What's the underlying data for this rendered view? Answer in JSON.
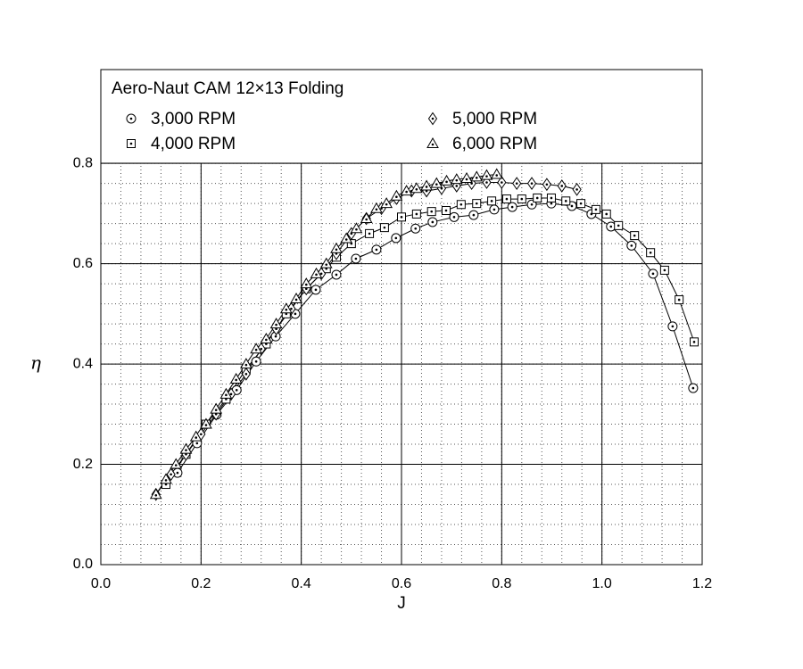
{
  "chart_data": {
    "type": "line",
    "title": "Aero-Naut CAM 12×13 Folding",
    "x_label": "J",
    "y_label": "η",
    "xlim": [
      0,
      1.2
    ],
    "ylim": [
      0,
      0.987
    ],
    "xticks": [
      {
        "value": 0,
        "label": "0.0"
      },
      0.2,
      0.4,
      0.6,
      0.8,
      {
        "value": 1,
        "label": "1.0"
      },
      1.2
    ],
    "yticks": [
      {
        "value": 0,
        "label": "0.0"
      },
      0.2,
      0.4,
      0.6,
      0.8
    ],
    "grid": true,
    "minor_step": 0.04,
    "series": [
      {
        "name": "3,000 RPM",
        "color": "#000000",
        "marker": "circle",
        "x": [
          0.153,
          0.192,
          0.231,
          0.271,
          0.31,
          0.349,
          0.388,
          0.429,
          0.47,
          0.509,
          0.55,
          0.589,
          0.628,
          0.662,
          0.705,
          0.744,
          0.785,
          0.821,
          0.86,
          0.899,
          0.94,
          0.979,
          1.018,
          1.059,
          1.102,
          1.141,
          1.182
        ],
        "values": [
          0.183,
          0.242,
          0.299,
          0.348,
          0.405,
          0.455,
          0.5,
          0.548,
          0.578,
          0.61,
          0.628,
          0.651,
          0.67,
          0.683,
          0.693,
          0.697,
          0.708,
          0.713,
          0.718,
          0.72,
          0.715,
          0.699,
          0.674,
          0.636,
          0.58,
          0.475,
          0.352
        ]
      },
      {
        "name": "4,000 RPM",
        "color": "#000000",
        "marker": "square",
        "x": [
          0.13,
          0.17,
          0.21,
          0.25,
          0.29,
          0.33,
          0.37,
          0.41,
          0.45,
          0.47,
          0.5,
          0.536,
          0.566,
          0.6,
          0.63,
          0.66,
          0.689,
          0.719,
          0.75,
          0.78,
          0.81,
          0.84,
          0.871,
          0.899,
          0.928,
          0.958,
          0.988,
          1.009,
          1.033,
          1.065,
          1.097,
          1.125,
          1.154,
          1.184
        ],
        "values": [
          0.16,
          0.22,
          0.28,
          0.33,
          0.39,
          0.44,
          0.5,
          0.55,
          0.59,
          0.613,
          0.64,
          0.66,
          0.672,
          0.693,
          0.699,
          0.704,
          0.706,
          0.718,
          0.72,
          0.725,
          0.729,
          0.729,
          0.731,
          0.731,
          0.725,
          0.72,
          0.708,
          0.699,
          0.676,
          0.656,
          0.622,
          0.587,
          0.528,
          0.444
        ]
      },
      {
        "name": "5,000 RPM",
        "color": "#000000",
        "marker": "diamond",
        "x": [
          0.11,
          0.14,
          0.17,
          0.2,
          0.23,
          0.26,
          0.29,
          0.32,
          0.35,
          0.38,
          0.41,
          0.44,
          0.47,
          0.5,
          0.53,
          0.56,
          0.59,
          0.62,
          0.65,
          0.68,
          0.71,
          0.74,
          0.77,
          0.8,
          0.83,
          0.86,
          0.89,
          0.92,
          0.95
        ],
        "values": [
          0.14,
          0.18,
          0.22,
          0.26,
          0.3,
          0.34,
          0.38,
          0.43,
          0.47,
          0.51,
          0.55,
          0.58,
          0.62,
          0.66,
          0.69,
          0.71,
          0.73,
          0.745,
          0.745,
          0.75,
          0.755,
          0.76,
          0.762,
          0.762,
          0.76,
          0.76,
          0.758,
          0.755,
          0.748
        ]
      },
      {
        "name": "6,000 RPM",
        "color": "#000000",
        "marker": "triangle",
        "x": [
          0.11,
          0.13,
          0.15,
          0.17,
          0.19,
          0.21,
          0.23,
          0.25,
          0.27,
          0.29,
          0.31,
          0.33,
          0.35,
          0.37,
          0.39,
          0.41,
          0.43,
          0.45,
          0.47,
          0.49,
          0.51,
          0.53,
          0.55,
          0.57,
          0.59,
          0.61,
          0.63,
          0.65,
          0.67,
          0.69,
          0.71,
          0.73,
          0.75,
          0.77,
          0.79
        ],
        "values": [
          0.14,
          0.17,
          0.2,
          0.23,
          0.255,
          0.28,
          0.31,
          0.34,
          0.37,
          0.4,
          0.43,
          0.45,
          0.48,
          0.51,
          0.53,
          0.56,
          0.58,
          0.6,
          0.63,
          0.65,
          0.67,
          0.69,
          0.71,
          0.72,
          0.735,
          0.745,
          0.75,
          0.755,
          0.76,
          0.765,
          0.768,
          0.77,
          0.773,
          0.776,
          0.778
        ]
      }
    ]
  }
}
